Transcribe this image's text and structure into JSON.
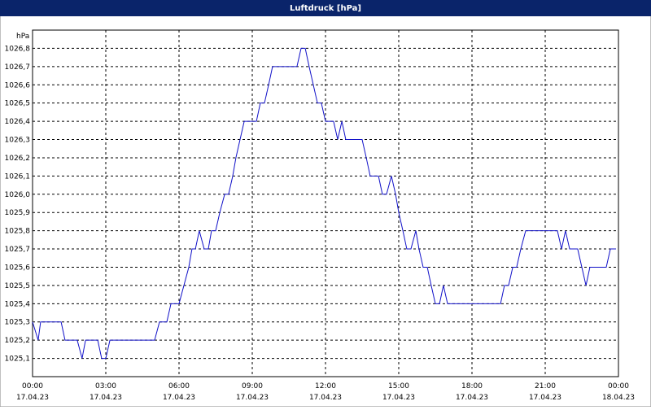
{
  "chart_data": {
    "type": "line",
    "title": "Luftdruck [hPa]",
    "y_unit": "hPa",
    "xlim": [
      0,
      24
    ],
    "ylim": [
      1025.0,
      1026.9
    ],
    "grid": true,
    "xticks": [
      {
        "value": 0,
        "label": "00:00"
      },
      {
        "value": 3,
        "label": "03:00"
      },
      {
        "value": 6,
        "label": "06:00"
      },
      {
        "value": 9,
        "label": "09:00"
      },
      {
        "value": 12,
        "label": "12:00"
      },
      {
        "value": 15,
        "label": "15:00"
      },
      {
        "value": 18,
        "label": "18:00"
      },
      {
        "value": 21,
        "label": "21:00"
      },
      {
        "value": 24,
        "label": "00:00"
      }
    ],
    "xtick_dates": [
      "17.04.23",
      "17.04.23",
      "17.04.23",
      "17.04.23",
      "17.04.23",
      "17.04.23",
      "17.04.23",
      "17.04.23",
      "18.04.23"
    ],
    "yticks": [
      {
        "value": 1025.1,
        "label": "1025,1"
      },
      {
        "value": 1025.2,
        "label": "1025,2"
      },
      {
        "value": 1025.3,
        "label": "1025,3"
      },
      {
        "value": 1025.4,
        "label": "1025,4"
      },
      {
        "value": 1025.5,
        "label": "1025,5"
      },
      {
        "value": 1025.6,
        "label": "1025,6"
      },
      {
        "value": 1025.7,
        "label": "1025,7"
      },
      {
        "value": 1025.8,
        "label": "1025,8"
      },
      {
        "value": 1025.9,
        "label": "1025,9"
      },
      {
        "value": 1026.0,
        "label": "1026,0"
      },
      {
        "value": 1026.1,
        "label": "1026,1"
      },
      {
        "value": 1026.2,
        "label": "1026,2"
      },
      {
        "value": 1026.3,
        "label": "1026,3"
      },
      {
        "value": 1026.4,
        "label": "1026,4"
      },
      {
        "value": 1026.5,
        "label": "1026,5"
      },
      {
        "value": 1026.6,
        "label": "1026,6"
      },
      {
        "value": 1026.7,
        "label": "1026,7"
      },
      {
        "value": 1026.8,
        "label": "1026,8"
      }
    ],
    "x": [
      0,
      0.23,
      0.33,
      0.5,
      1.17,
      1.33,
      1.83,
      2.03,
      2.17,
      2.67,
      2.83,
      3,
      3.17,
      5,
      5.2,
      5.5,
      5.67,
      6,
      6.2,
      6.4,
      6.53,
      6.67,
      6.83,
      7.03,
      7.2,
      7.33,
      7.5,
      7.67,
      7.87,
      8.03,
      8.2,
      8.33,
      8.5,
      8.67,
      9.17,
      9.33,
      9.5,
      9.67,
      9.83,
      10.83,
      11,
      11.17,
      11.33,
      11.5,
      11.67,
      11.83,
      12,
      12.33,
      12.5,
      12.67,
      12.83,
      13.5,
      13.67,
      13.83,
      14.17,
      14.33,
      14.5,
      14.7,
      14.87,
      15,
      15.17,
      15.33,
      15.5,
      15.7,
      15.83,
      16,
      16.17,
      16.33,
      16.5,
      16.67,
      16.83,
      17,
      19.17,
      19.33,
      19.5,
      19.67,
      19.83,
      20,
      20.2,
      21.5,
      21.67,
      21.83,
      22,
      22.33,
      22.5,
      22.67,
      22.83,
      23.5,
      23.67,
      23.9
    ],
    "series": [
      {
        "name": "Luftdruck",
        "color": "#1010c8",
        "values": [
          1025.3,
          1025.2,
          1025.3,
          1025.3,
          1025.3,
          1025.2,
          1025.2,
          1025.1,
          1025.2,
          1025.2,
          1025.1,
          1025.1,
          1025.2,
          1025.2,
          1025.3,
          1025.3,
          1025.4,
          1025.4,
          1025.5,
          1025.6,
          1025.7,
          1025.7,
          1025.8,
          1025.7,
          1025.7,
          1025.8,
          1025.8,
          1025.9,
          1026.0,
          1026.0,
          1026.1,
          1026.2,
          1026.3,
          1026.4,
          1026.4,
          1026.5,
          1026.5,
          1026.6,
          1026.7,
          1026.7,
          1026.8,
          1026.8,
          1026.7,
          1026.6,
          1026.5,
          1026.5,
          1026.4,
          1026.4,
          1026.3,
          1026.4,
          1026.3,
          1026.3,
          1026.2,
          1026.1,
          1026.1,
          1026.0,
          1026.0,
          1026.1,
          1026.0,
          1025.9,
          1025.8,
          1025.7,
          1025.7,
          1025.8,
          1025.7,
          1025.6,
          1025.6,
          1025.5,
          1025.4,
          1025.4,
          1025.5,
          1025.4,
          1025.4,
          1025.5,
          1025.5,
          1025.6,
          1025.6,
          1025.7,
          1025.8,
          1025.8,
          1025.7,
          1025.8,
          1025.7,
          1025.7,
          1025.6,
          1025.5,
          1025.6,
          1025.6,
          1025.7,
          1025.7
        ]
      }
    ]
  }
}
